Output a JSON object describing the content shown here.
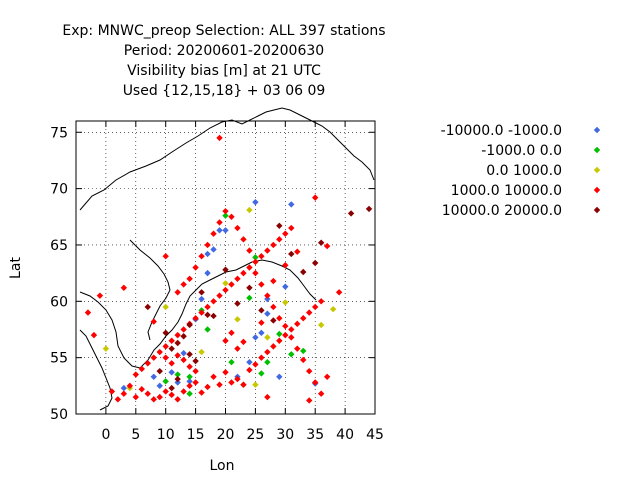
{
  "chart_data": {
    "type": "scatter",
    "title_lines": [
      "Exp: MNWC_preop   Selection: ALL    397 stations",
      "Period: 20200601-20200630",
      "Visibility bias [m] at  21 UTC",
      "Used {12,15,18} + 03 06 09"
    ],
    "xlabel": "Lon",
    "ylabel": "Lat",
    "xlim": [
      -5,
      45
    ],
    "ylim": [
      50,
      76
    ],
    "xticks": [
      0,
      5,
      10,
      15,
      20,
      25,
      30,
      35,
      40,
      45
    ],
    "yticks": [
      50,
      55,
      60,
      65,
      70,
      75
    ],
    "grid": true,
    "legend_position": "right",
    "series": [
      {
        "name": "-10000.0 -1000.0",
        "color": "#4169e1",
        "points": [
          [
            8,
            53.3
          ],
          [
            9,
            52.5
          ],
          [
            11,
            53.7
          ],
          [
            12,
            52.8
          ],
          [
            14,
            52.9
          ],
          [
            15,
            58.4
          ],
          [
            16,
            60.2
          ],
          [
            17,
            62.5
          ],
          [
            17,
            64.2
          ],
          [
            18,
            64.6
          ],
          [
            19,
            66.3
          ],
          [
            22,
            53.3
          ],
          [
            24,
            54.6
          ],
          [
            25,
            56.8
          ],
          [
            25,
            68.8
          ],
          [
            26,
            57.2
          ],
          [
            27,
            58.9
          ],
          [
            27,
            60.2
          ],
          [
            29,
            53.3
          ],
          [
            30,
            61.3
          ],
          [
            31,
            68.6
          ],
          [
            35,
            52.7
          ],
          [
            3,
            52.3
          ],
          [
            13,
            55.4
          ],
          [
            20,
            66.3
          ]
        ]
      },
      {
        "name": "-1000.0 0.0",
        "color": "#00c000",
        "points": [
          [
            10,
            52.9
          ],
          [
            12,
            53.5
          ],
          [
            14,
            53.3
          ],
          [
            16,
            59.2
          ],
          [
            17,
            57.5
          ],
          [
            20,
            67.6
          ],
          [
            21,
            54.6
          ],
          [
            23,
            52.6
          ],
          [
            24,
            60.3
          ],
          [
            25,
            63.9
          ],
          [
            27,
            54.6
          ],
          [
            29,
            57.1
          ],
          [
            31,
            55.3
          ],
          [
            33,
            55.6
          ],
          [
            14,
            51.8
          ],
          [
            26,
            53.6
          ]
        ]
      },
      {
        "name": "0.0 1000.0",
        "color": "#c8c800",
        "points": [
          [
            0,
            55.8
          ],
          [
            4,
            52.3
          ],
          [
            10,
            59.5
          ],
          [
            16,
            55.5
          ],
          [
            20,
            61.6
          ],
          [
            22,
            58.4
          ],
          [
            24,
            68.1
          ],
          [
            27,
            56.8
          ],
          [
            30,
            59.9
          ],
          [
            36,
            57.9
          ],
          [
            38,
            59.3
          ],
          [
            25,
            52.6
          ]
        ]
      },
      {
        "name": "1000.0 10000.0",
        "color": "#ff0000",
        "points": [
          [
            -3,
            59
          ],
          [
            -1,
            60.5
          ],
          [
            -2,
            57
          ],
          [
            1,
            52
          ],
          [
            2,
            51.3
          ],
          [
            3,
            51.8
          ],
          [
            4,
            52.5
          ],
          [
            5,
            51.5
          ],
          [
            6,
            52.2
          ],
          [
            7,
            51.8
          ],
          [
            8,
            51.3
          ],
          [
            9,
            51.5
          ],
          [
            10,
            52
          ],
          [
            11,
            51.7
          ],
          [
            12,
            51.3
          ],
          [
            13,
            52
          ],
          [
            14,
            52.5
          ],
          [
            15,
            52.8
          ],
          [
            16,
            51.9
          ],
          [
            17,
            52.4
          ],
          [
            18,
            53.3
          ],
          [
            19,
            52.6
          ],
          [
            20,
            53.7
          ],
          [
            21,
            52.8
          ],
          [
            22,
            53.1
          ],
          [
            23,
            52.6
          ],
          [
            24,
            53.9
          ],
          [
            25,
            54.4
          ],
          [
            26,
            55
          ],
          [
            27,
            55.5
          ],
          [
            28,
            56
          ],
          [
            29,
            56.5
          ],
          [
            30,
            57
          ],
          [
            31,
            57.5
          ],
          [
            32,
            58
          ],
          [
            33,
            58.5
          ],
          [
            34,
            59
          ],
          [
            35,
            59.5
          ],
          [
            36,
            60
          ],
          [
            5,
            53.5
          ],
          [
            6,
            54
          ],
          [
            7,
            54.5
          ],
          [
            8,
            55
          ],
          [
            9,
            55.5
          ],
          [
            10,
            56
          ],
          [
            11,
            56.5
          ],
          [
            12,
            57
          ],
          [
            13,
            57.5
          ],
          [
            14,
            58
          ],
          [
            15,
            58.5
          ],
          [
            16,
            59
          ],
          [
            17,
            59.5
          ],
          [
            18,
            60
          ],
          [
            19,
            60.5
          ],
          [
            20,
            61
          ],
          [
            21,
            61.5
          ],
          [
            22,
            62
          ],
          [
            23,
            62.5
          ],
          [
            24,
            63
          ],
          [
            25,
            63.5
          ],
          [
            26,
            64
          ],
          [
            27,
            64.5
          ],
          [
            28,
            65
          ],
          [
            29,
            65.5
          ],
          [
            30,
            66
          ],
          [
            31,
            66.5
          ],
          [
            12,
            60.8
          ],
          [
            13,
            61.5
          ],
          [
            14,
            62
          ],
          [
            15,
            63
          ],
          [
            16,
            64
          ],
          [
            17,
            65
          ],
          [
            18,
            66
          ],
          [
            19,
            67
          ],
          [
            20,
            68
          ],
          [
            21,
            67.5
          ],
          [
            22,
            66.5
          ],
          [
            23,
            65.5
          ],
          [
            24,
            64.5
          ],
          [
            25,
            62.5
          ],
          [
            26,
            61.5
          ],
          [
            27,
            60.5
          ],
          [
            28,
            59.5
          ],
          [
            29,
            58.5
          ],
          [
            30,
            57.8
          ],
          [
            31,
            56.8
          ],
          [
            32,
            55.8
          ],
          [
            33,
            54.8
          ],
          [
            34,
            53.8
          ],
          [
            35,
            52.8
          ],
          [
            36,
            51.8
          ],
          [
            19,
            74.5
          ],
          [
            3,
            61.2
          ],
          [
            10,
            64
          ],
          [
            8,
            58.2
          ],
          [
            10,
            55
          ],
          [
            11,
            54.5
          ],
          [
            12,
            55.2
          ],
          [
            13,
            54.8
          ],
          [
            14,
            54.2
          ],
          [
            15,
            53.8
          ],
          [
            20,
            56.5
          ],
          [
            21,
            57.2
          ],
          [
            22,
            55.8
          ],
          [
            23,
            56.4
          ],
          [
            26,
            58.1
          ],
          [
            28,
            61.8
          ],
          [
            30,
            63.2
          ],
          [
            32,
            64.4
          ],
          [
            35,
            69.2
          ],
          [
            37,
            64.9
          ],
          [
            39,
            60.8
          ],
          [
            37,
            53.3
          ],
          [
            34,
            51.2
          ],
          [
            27,
            51.5
          ]
        ]
      },
      {
        "name": "10000.0 20000.0",
        "color": "#8b0000",
        "points": [
          [
            7,
            59.5
          ],
          [
            10,
            57.2
          ],
          [
            11,
            55.8
          ],
          [
            12,
            56.3
          ],
          [
            13,
            56.9
          ],
          [
            14,
            55.3
          ],
          [
            15,
            54.7
          ],
          [
            16,
            60.8
          ],
          [
            18,
            58.7
          ],
          [
            20,
            62.8
          ],
          [
            22,
            59.8
          ],
          [
            24,
            61.2
          ],
          [
            26,
            59.2
          ],
          [
            28,
            58.3
          ],
          [
            29,
            66.7
          ],
          [
            31,
            64.2
          ],
          [
            33,
            62.6
          ],
          [
            35,
            63.4
          ],
          [
            36,
            65.2
          ],
          [
            41,
            67.8
          ],
          [
            44,
            68.2
          ],
          [
            14,
            57.9
          ],
          [
            12,
            53.1
          ],
          [
            9,
            53.8
          ],
          [
            11,
            52.3
          ],
          [
            17,
            58.8
          ]
        ]
      }
    ]
  },
  "legend": {
    "entries": [
      "-10000.0 -1000.0",
      "-1000.0 0.0",
      "0.0 1000.0",
      "1000.0 10000.0",
      "10000.0 20000.0"
    ]
  }
}
